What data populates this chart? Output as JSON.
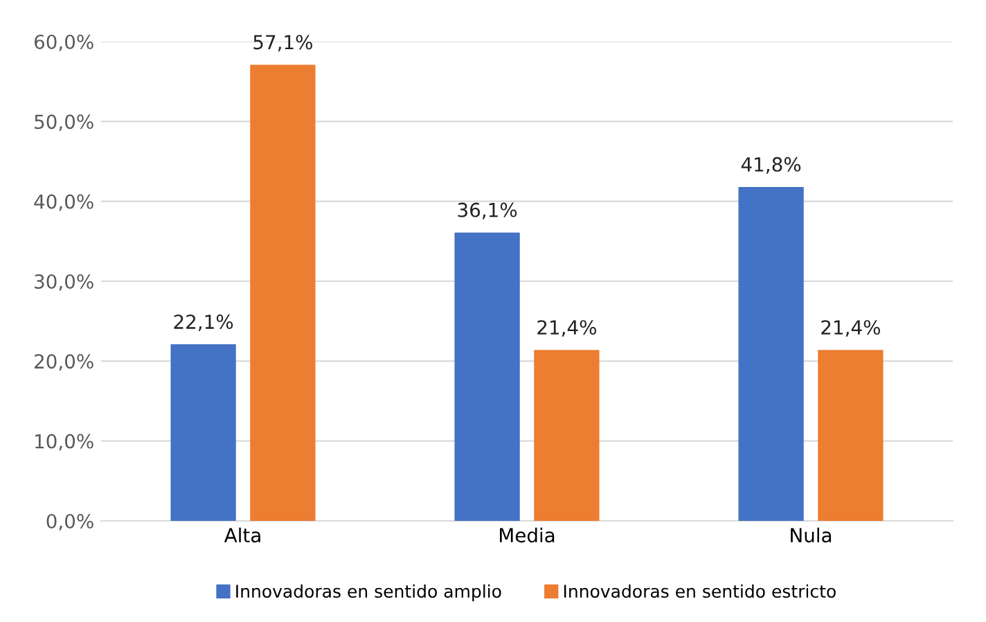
{
  "chart_data": {
    "type": "bar",
    "categories": [
      "Alta",
      "Media",
      "Nula"
    ],
    "series": [
      {
        "name": "Innovadoras en sentido amplio",
        "color": "#4472c4",
        "values": [
          22.1,
          36.1,
          41.8
        ],
        "value_labels": [
          "22,1%",
          "36,1%",
          "41,8%"
        ]
      },
      {
        "name": "Innovadoras en sentido estricto",
        "color": "#ed7d31",
        "values": [
          57.1,
          21.4,
          21.4
        ],
        "value_labels": [
          "57,1%",
          "21,4%",
          "21,4%"
        ]
      }
    ],
    "ylim": [
      0,
      60
    ],
    "yticks": [
      {
        "value": 0,
        "label": "0,0%"
      },
      {
        "value": 10,
        "label": "10,0%"
      },
      {
        "value": 20,
        "label": "20,0%"
      },
      {
        "value": 30,
        "label": "30,0%"
      },
      {
        "value": 40,
        "label": "40,0%"
      },
      {
        "value": 50,
        "label": "50,0%"
      },
      {
        "value": 60,
        "label": "60,0%"
      }
    ],
    "grid": "y",
    "legend": "bottom"
  }
}
